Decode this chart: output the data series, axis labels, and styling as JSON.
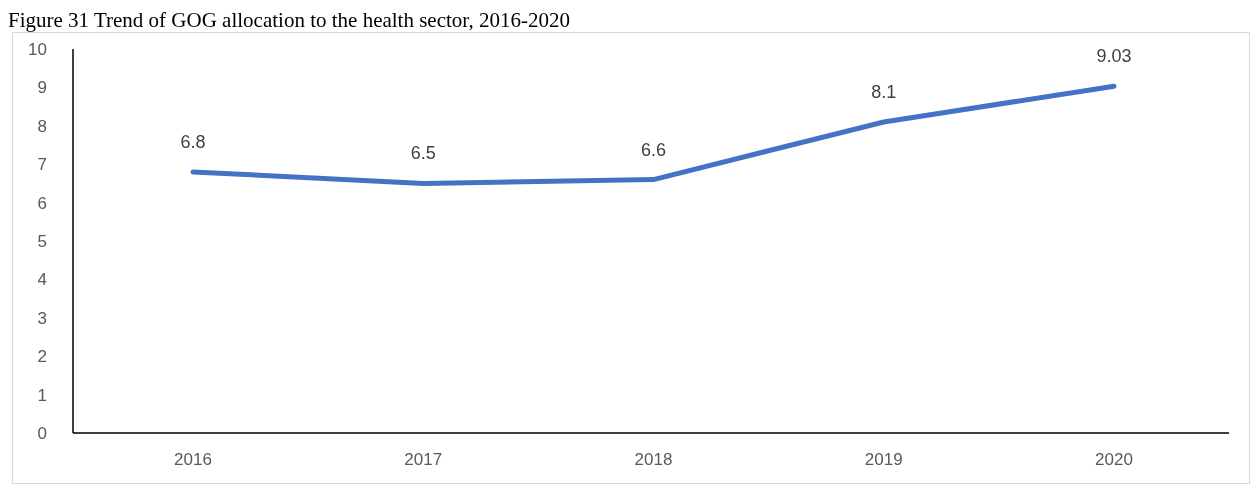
{
  "chart_data": {
    "type": "line",
    "title": "Figure 31 Trend of GOG allocation to the health sector, 2016-2020",
    "categories": [
      "2016",
      "2017",
      "2018",
      "2019",
      "2020"
    ],
    "series": [
      {
        "color": "#4472c4",
        "values": [
          6.8,
          6.5,
          6.6,
          8.1,
          9.03
        ]
      }
    ],
    "ylim": [
      0,
      10
    ],
    "yticks": [
      0,
      1,
      2,
      3,
      4,
      5,
      6,
      7,
      8,
      9,
      10
    ],
    "data_labels": true,
    "grid": false,
    "marker": "none"
  }
}
